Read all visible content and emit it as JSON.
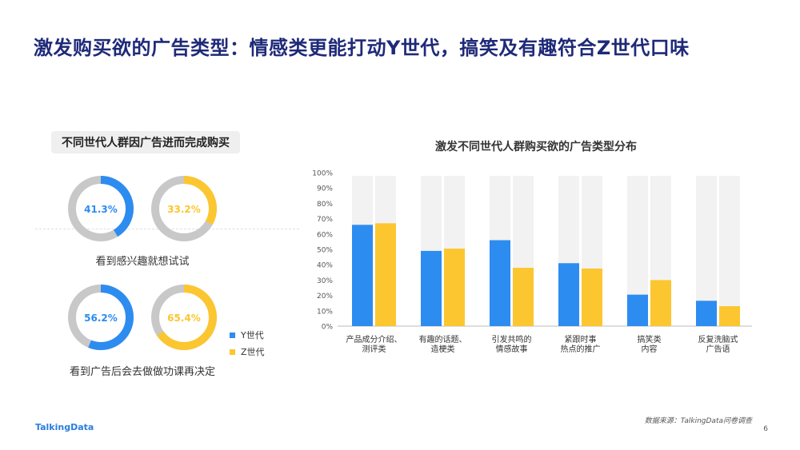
{
  "page": {
    "title": "激发购买欲的广告类型：情感类更能打动Y世代，搞笑及有趣符合Z世代口味",
    "logo": "TalkingData",
    "source": "数据来源：TalkingData问卷调查",
    "page_number": "6"
  },
  "left_panel": {
    "title": "不同世代人群因广告进而完成购买",
    "groups": [
      {
        "caption": "看到感兴趣就想试试",
        "donuts": [
          {
            "series": "Y世代",
            "label": "41.3%",
            "value": 41.3,
            "color": "#2d8cf0"
          },
          {
            "series": "Z世代",
            "label": "33.2%",
            "value": 33.2,
            "color": "#fcc630"
          }
        ]
      },
      {
        "caption": "看到广告后会去做做功课再决定",
        "donuts": [
          {
            "series": "Y世代",
            "label": "56.2%",
            "value": 56.2,
            "color": "#2d8cf0"
          },
          {
            "series": "Z世代",
            "label": "65.4%",
            "value": 65.4,
            "color": "#fcc630"
          }
        ]
      }
    ],
    "legend": [
      {
        "name": "Y世代",
        "color": "#2d8cf0"
      },
      {
        "name": "Z世代",
        "color": "#fcc630"
      }
    ],
    "ring_track_color": "#c8c8c8"
  },
  "chart_data": {
    "type": "bar",
    "title": "激发不同世代人群购买欲的广告类型分布",
    "categories": [
      [
        "产品成分介绍、",
        "测评类"
      ],
      [
        "有趣的话题、",
        "造梗类"
      ],
      [
        "引发共鸣的",
        "情感故事"
      ],
      [
        "紧跟时事",
        "热点的推广"
      ],
      [
        "搞笑类",
        "内容"
      ],
      [
        "反复洗脑式",
        "广告语"
      ]
    ],
    "series": [
      {
        "name": "Y世代",
        "values": [
          66,
          49,
          56,
          41,
          20.5,
          16.5
        ],
        "color": "#2d8cf0"
      },
      {
        "name": "Z世代",
        "values": [
          67,
          50.5,
          38,
          37.5,
          30,
          13
        ],
        "color": "#fcc630"
      }
    ],
    "ylim": [
      0,
      100
    ],
    "yticks": [
      "0%",
      "10%",
      "20%",
      "30%",
      "40%",
      "50%",
      "60%",
      "70%",
      "80%",
      "90%",
      "100%"
    ],
    "background_color": "#f2f2f2",
    "grid": false
  }
}
